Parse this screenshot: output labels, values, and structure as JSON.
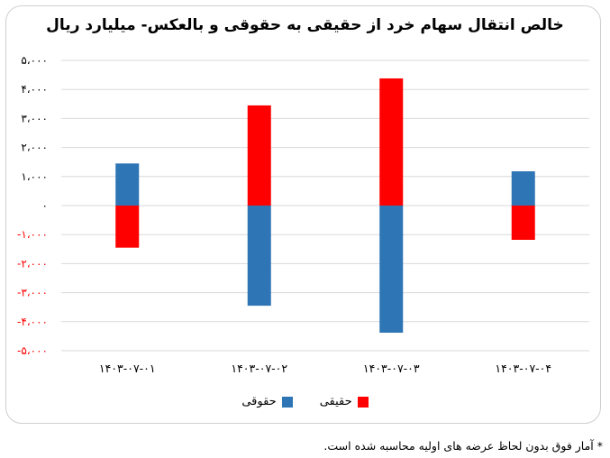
{
  "chart_data": {
    "type": "bar",
    "title": "خالص انتقال سهام خرد از حقیقی به حقوقی و بالعکس- میلیارد ریال",
    "categories": [
      "۱۴۰۳-۰۷-۰۱",
      "۱۴۰۳-۰۷-۰۲",
      "۱۴۰۳-۰۷-۰۳",
      "۱۴۰۳-۰۷-۰۴"
    ],
    "series": [
      {
        "name": "حقیقی",
        "color": "#ff0000",
        "values": [
          -1450,
          3450,
          4380,
          -1180
        ]
      },
      {
        "name": "حقوقی",
        "color": "#2e75b6",
        "values": [
          1450,
          -3450,
          -4380,
          1180
        ]
      }
    ],
    "ylim": [
      -5000,
      5000
    ],
    "yticks": [
      5000,
      4000,
      3000,
      2000,
      1000,
      0,
      -1000,
      -2000,
      -3000,
      -4000,
      -5000
    ],
    "ytick_labels": [
      "۵،۰۰۰",
      "۴،۰۰۰",
      "۳،۰۰۰",
      "۲،۰۰۰",
      "۱،۰۰۰",
      "۰",
      "-۱،۰۰۰",
      "-۲،۰۰۰",
      "-۳،۰۰۰",
      "-۴،۰۰۰",
      "-۵،۰۰۰"
    ],
    "positive_label_color": "#000000",
    "negative_label_color": "#ff0000",
    "grid": true,
    "legend_position": "bottom-center"
  },
  "footnote": "* آمار فوق بدون لحاظ عرضه های اولیه محاسبه شده است."
}
